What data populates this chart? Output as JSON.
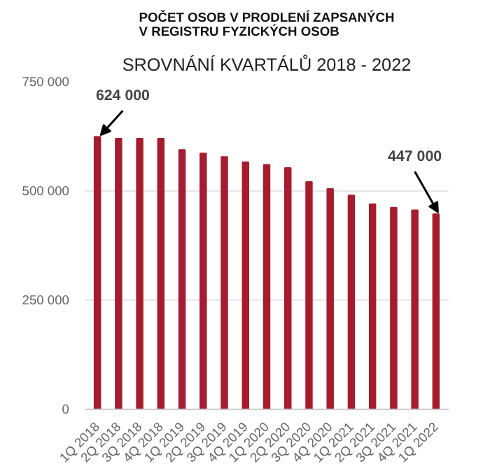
{
  "chart_data": {
    "type": "bar",
    "title": "POČET OSOB V PRODLENÍ ZAPSANÝCH\nV REGISTRU FYZICKÝCH OSOB",
    "subtitle": "SROVNÁNÍ KVARTÁLŮ 2018 - 2022",
    "categories": [
      "1Q 2018",
      "2Q 2018",
      "3Q 2018",
      "4Q 2018",
      "1Q 2019",
      "2Q 2019",
      "3Q 2019",
      "4Q 2019",
      "1Q 2020",
      "2Q 2020",
      "3Q 2020",
      "4Q 2020",
      "1Q 2021",
      "2Q 2021",
      "3Q 2021",
      "4Q 2021",
      "1Q 2022"
    ],
    "values": [
      624000,
      620000,
      620000,
      620000,
      594000,
      586000,
      578000,
      566000,
      560000,
      553000,
      521000,
      505000,
      490000,
      470000,
      462000,
      456000,
      447000
    ],
    "color": "#a61c2e",
    "ylim": [
      0,
      750000
    ],
    "yticks": [
      {
        "value": 0,
        "label": "0"
      },
      {
        "value": 250000,
        "label": "250 000"
      },
      {
        "value": 500000,
        "label": "500 000"
      },
      {
        "value": 750000,
        "label": "750 000"
      }
    ],
    "grid": "y",
    "annotations": [
      {
        "text": "624 000",
        "x": "1Q 2018",
        "y": 624000
      },
      {
        "text": "447 000",
        "x": "1Q 2022",
        "y": 447000
      }
    ]
  }
}
